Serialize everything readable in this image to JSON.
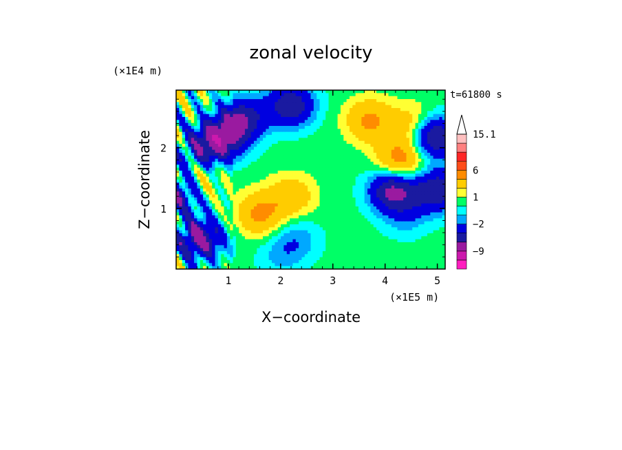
{
  "chart_data": {
    "type": "heatmap",
    "title": "zonal velocity",
    "xlabel": "X−coordinate",
    "ylabel": "Z−coordinate",
    "x_unit": "(×1E5 m)",
    "y_unit": "(×1E4 m)",
    "time_label": "t=61800 s",
    "xlim": [
      0,
      5.15
    ],
    "ylim": [
      0,
      2.95
    ],
    "x_ticks": [
      1,
      2,
      3,
      4,
      5
    ],
    "y_ticks": [
      1,
      2
    ],
    "colorbar": {
      "levels": [
        -15,
        -12,
        -9,
        -6,
        -4,
        -2,
        -1,
        0,
        1,
        2,
        4,
        6,
        9,
        12,
        15.1
      ],
      "colors": [
        "#ff1fbf",
        "#cc19ad",
        "#9a1aa0",
        "#1a1aa0",
        "#0000e0",
        "#00a8ff",
        "#00ffff",
        "#00ff66",
        "#ffff33",
        "#ffcc00",
        "#ff8c00",
        "#ff4d1a",
        "#ff2626",
        "#ff8080",
        "#ffc0c0"
      ],
      "labels": [
        "15.1",
        "6",
        "1",
        "−2",
        "−9"
      ],
      "label_values": [
        15.1,
        6,
        1,
        -2,
        -9
      ],
      "extend": "max"
    },
    "features": [
      {
        "x": 0.15,
        "z": 1.3,
        "value": -8
      },
      {
        "x": 0.45,
        "z": 0.5,
        "value": -7
      },
      {
        "x": 0.55,
        "z": 2.0,
        "value": -5
      },
      {
        "x": 0.95,
        "z": 2.2,
        "value": -6
      },
      {
        "x": 1.3,
        "z": 2.5,
        "value": -5
      },
      {
        "x": 2.2,
        "z": 2.7,
        "value": -6
      },
      {
        "x": 4.15,
        "z": 1.3,
        "value": -7
      },
      {
        "x": 4.9,
        "z": 2.2,
        "value": -8
      },
      {
        "x": 5.0,
        "z": 1.3,
        "value": -6
      },
      {
        "x": 1.6,
        "z": 0.9,
        "value": 4
      },
      {
        "x": 2.2,
        "z": 1.2,
        "value": 3
      },
      {
        "x": 3.7,
        "z": 2.45,
        "value": 4
      },
      {
        "x": 4.3,
        "z": 1.8,
        "value": 5
      },
      {
        "x": 0.35,
        "z": 1.4,
        "value": 5
      },
      {
        "x": 4.6,
        "z": 2.35,
        "value": 4
      },
      {
        "x": 2.3,
        "z": 0.5,
        "value": -2
      },
      {
        "x": 2.0,
        "z": 0.2,
        "value": -1.5
      },
      {
        "x": 4.4,
        "z": 0.9,
        "value": -2
      },
      {
        "x": 3.2,
        "z": 1.5,
        "value": 0
      },
      {
        "x": 1.8,
        "z": 2.3,
        "value": 0
      }
    ]
  }
}
